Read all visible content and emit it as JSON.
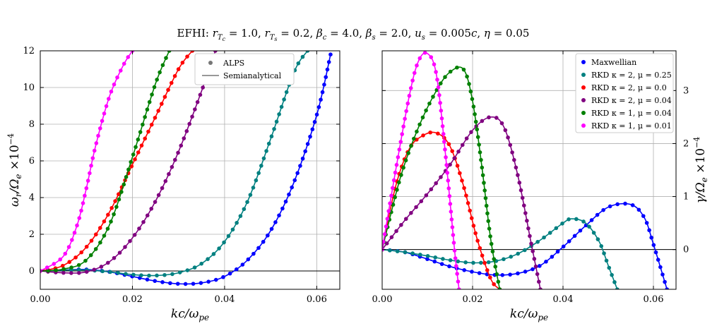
{
  "title": "EFHI: r_{T_c} = 1.0, r_{T_s} = 0.2, β_c = 4.0, β_s = 2.0, u_s = 0.005c, η = 0.05",
  "chart_data": [
    {
      "type": "line",
      "panel": "left",
      "xlabel": "kc/ω_pe",
      "ylabel": "ω_r/Ω_e ×10^-4",
      "xlim": [
        0,
        0.065
      ],
      "ylim": [
        -1,
        12
      ],
      "xticks": [
        "0.00",
        "0.02",
        "0.04",
        "0.06"
      ],
      "yticks": [
        "0",
        "2",
        "4",
        "6",
        "8",
        "10",
        "12"
      ],
      "grid": true,
      "legend": {
        "position": "top-right",
        "entries": [
          {
            "label": "ALPS",
            "marker": "dot"
          },
          {
            "label": "Semianalytical",
            "marker": "line"
          }
        ]
      },
      "series": [
        {
          "color": "#0000ff",
          "x": [
            0,
            0.005,
            0.01,
            0.015,
            0.02,
            0.025,
            0.03,
            0.035,
            0.04,
            0.045,
            0.05,
            0.055,
            0.06,
            0.063
          ],
          "y": [
            0,
            0.05,
            0.08,
            -0.05,
            -0.3,
            -0.55,
            -0.7,
            -0.65,
            -0.3,
            0.6,
            2.2,
            4.8,
            8.5,
            11.8
          ]
        },
        {
          "color": "#008080",
          "x": [
            0,
            0.005,
            0.01,
            0.015,
            0.02,
            0.025,
            0.03,
            0.035,
            0.04,
            0.045,
            0.05,
            0.055,
            0.058
          ],
          "y": [
            0,
            0.05,
            0.05,
            -0.05,
            -0.2,
            -0.25,
            -0.1,
            0.4,
            1.6,
            3.8,
            7.2,
            10.8,
            12
          ]
        },
        {
          "color": "#800080",
          "x": [
            0,
            0.005,
            0.01,
            0.015,
            0.02,
            0.025,
            0.03,
            0.035,
            0.038
          ],
          "y": [
            0,
            -0.1,
            -0.05,
            0.5,
            1.8,
            3.8,
            6.5,
            9.8,
            12
          ]
        },
        {
          "color": "#ff0000",
          "x": [
            0,
            0.005,
            0.01,
            0.015,
            0.02,
            0.025,
            0.03,
            0.033
          ],
          "y": [
            0,
            0.3,
            1.3,
            3.2,
            5.8,
            8.4,
            11.0,
            12
          ]
        },
        {
          "color": "#008000",
          "x": [
            0,
            0.005,
            0.01,
            0.015,
            0.02,
            0.025,
            0.028
          ],
          "y": [
            0,
            0.1,
            0.6,
            2.5,
            6.2,
            10.2,
            12
          ]
        },
        {
          "color": "#ff00ff",
          "x": [
            0,
            0.005,
            0.008,
            0.01,
            0.012,
            0.015,
            0.018,
            0.02
          ],
          "y": [
            0,
            0.8,
            2.5,
            4.5,
            6.8,
            9.5,
            11.2,
            12
          ]
        }
      ]
    },
    {
      "type": "line",
      "panel": "right",
      "xlabel": "kc/ω_pe",
      "ylabel": "γ/Ω_e ×10^-4",
      "xlim": [
        0,
        0.065
      ],
      "ylim": [
        -0.75,
        3.75
      ],
      "xticks": [
        "0.00",
        "0.02",
        "0.04",
        "0.06"
      ],
      "yticks": [
        "0",
        "1",
        "2",
        "3"
      ],
      "grid": true,
      "legend": {
        "position": "top-right"
      },
      "series": [
        {
          "name": "Maxwellian",
          "color": "#0000ff",
          "x": [
            0,
            0.005,
            0.01,
            0.015,
            0.02,
            0.025,
            0.03,
            0.035,
            0.04,
            0.045,
            0.05,
            0.055,
            0.058,
            0.06,
            0.063
          ],
          "y": [
            0,
            -0.05,
            -0.18,
            -0.32,
            -0.42,
            -0.48,
            -0.45,
            -0.3,
            0.05,
            0.45,
            0.8,
            0.85,
            0.6,
            0.1,
            -0.75
          ]
        },
        {
          "name": "RKD κ = 2, μ = 0.25",
          "color": "#008080",
          "x": [
            0,
            0.005,
            0.01,
            0.015,
            0.02,
            0.025,
            0.03,
            0.035,
            0.04,
            0.042,
            0.045,
            0.048,
            0.05,
            0.052
          ],
          "y": [
            0,
            -0.05,
            -0.12,
            -0.2,
            -0.25,
            -0.22,
            -0.08,
            0.18,
            0.5,
            0.58,
            0.5,
            0.15,
            -0.3,
            -0.75
          ]
        },
        {
          "name": "RKD κ = 2, μ = 0.0",
          "color": "#ff0000",
          "x": [
            0,
            0.003,
            0.006,
            0.009,
            0.012,
            0.015,
            0.018,
            0.021,
            0.024,
            0.026
          ],
          "y": [
            0,
            1.2,
            1.9,
            2.15,
            2.2,
            1.95,
            1.2,
            0.2,
            -0.55,
            -0.75
          ]
        },
        {
          "name": "RKD κ = 2, μ = 0.04",
          "color": "#800080",
          "x": [
            0,
            0.005,
            0.01,
            0.015,
            0.02,
            0.024,
            0.027,
            0.03,
            0.033,
            0.035
          ],
          "y": [
            0,
            0.55,
            1.05,
            1.6,
            2.25,
            2.5,
            2.3,
            1.4,
            0.1,
            -0.75
          ]
        },
        {
          "name": "RKD κ = 1, μ = 0.04",
          "color": "#008000",
          "x": [
            0,
            0.004,
            0.008,
            0.012,
            0.015,
            0.018,
            0.02,
            0.022,
            0.024,
            0.026
          ],
          "y": [
            0,
            1.35,
            2.3,
            3.0,
            3.35,
            3.4,
            2.8,
            1.6,
            0.2,
            -0.75
          ]
        },
        {
          "name": "RKD κ = 1, μ = 0.01",
          "color": "#ff00ff",
          "x": [
            0,
            0.003,
            0.006,
            0.008,
            0.01,
            0.012,
            0.014,
            0.016,
            0.017
          ],
          "y": [
            0,
            1.5,
            2.9,
            3.55,
            3.7,
            3.3,
            1.8,
            0.0,
            -0.75
          ]
        }
      ]
    }
  ]
}
